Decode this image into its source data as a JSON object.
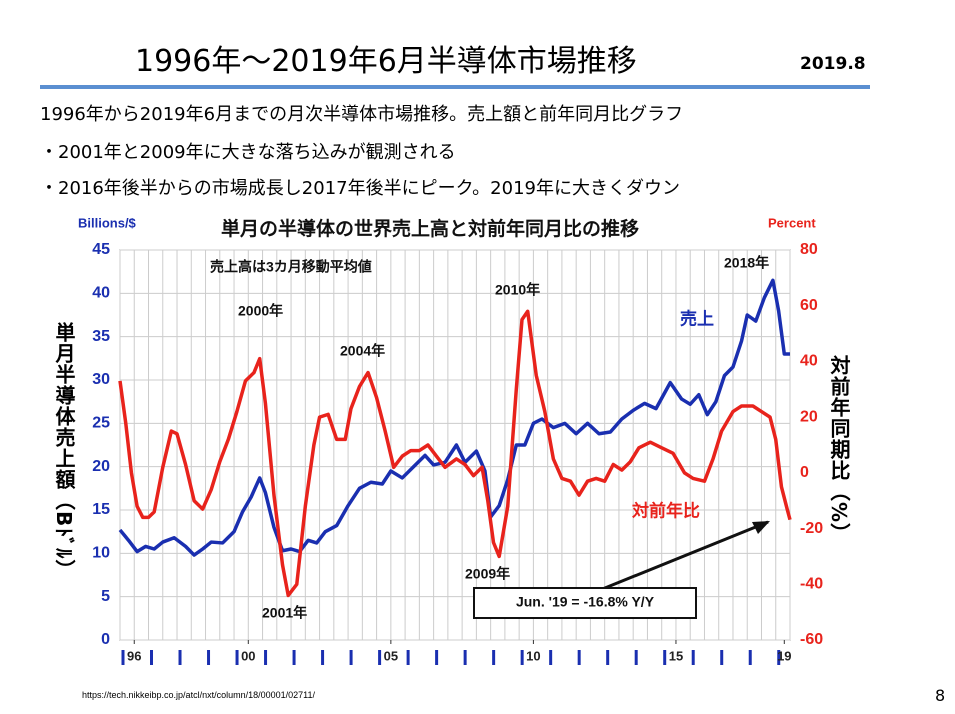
{
  "header": {
    "title": "1996年～2019年6月半導体市場推移",
    "date": "2019.8"
  },
  "bullets": [
    "1996年から2019年6月までの月次半導体市場推移。売上額と前年同月比グラフ",
    "・2001年と2009年に大きな落ち込みが観測される",
    "・2016年後半からの市場成長し2017年後半にピーク。2019年に大きくダウン"
  ],
  "chart_data": {
    "type": "line",
    "title": "単月の半導体の世界売上高と対前年同月比の推移",
    "y_unit": "Billions/$",
    "y2_unit": "Percent",
    "ylabel": "単月半導体売上額（Bﾄﾞﾙ）",
    "y2label": "対前年同期比（%）",
    "xlim": [
      1996,
      2019.5
    ],
    "xticks": [
      {
        "value": 1996.5,
        "label": "96"
      },
      {
        "value": 2000.5,
        "label": "00"
      },
      {
        "value": 2005.5,
        "label": "05"
      },
      {
        "value": 2010.5,
        "label": "10"
      },
      {
        "value": 2015.5,
        "label": "15"
      },
      {
        "value": 2019.3,
        "label": "19"
      }
    ],
    "ylim": [
      0,
      45
    ],
    "yticks": [
      0,
      5,
      10,
      15,
      20,
      25,
      30,
      35,
      40,
      45
    ],
    "y2lim": [
      -60,
      80
    ],
    "y2ticks": [
      -60,
      -40,
      -20,
      0,
      20,
      40,
      60,
      80
    ],
    "grid": true,
    "series": [
      {
        "name": "売上",
        "color": "#1a2fb0",
        "axis": "y",
        "x": [
          1996.0,
          1996.3,
          1996.6,
          1996.9,
          1997.2,
          1997.5,
          1997.9,
          1998.3,
          1998.6,
          1998.9,
          1999.2,
          1999.6,
          2000.0,
          2000.3,
          2000.6,
          2000.9,
          2001.1,
          2001.4,
          2001.7,
          2002.0,
          2002.3,
          2002.6,
          2002.9,
          2003.2,
          2003.6,
          2004.0,
          2004.4,
          2004.8,
          2005.2,
          2005.5,
          2005.9,
          2006.3,
          2006.7,
          2007.0,
          2007.4,
          2007.8,
          2008.1,
          2008.5,
          2008.8,
          2009.0,
          2009.3,
          2009.6,
          2009.9,
          2010.2,
          2010.5,
          2010.8,
          2011.2,
          2011.6,
          2012.0,
          2012.4,
          2012.8,
          2013.2,
          2013.6,
          2014.0,
          2014.4,
          2014.8,
          2015.3,
          2015.7,
          2016.0,
          2016.3,
          2016.6,
          2016.9,
          2017.2,
          2017.5,
          2017.8,
          2018.0,
          2018.3,
          2018.6,
          2018.9,
          2019.1,
          2019.3,
          2019.5
        ],
        "values": [
          12.7,
          11.5,
          10.2,
          10.8,
          10.5,
          11.3,
          11.8,
          10.8,
          9.8,
          10.5,
          11.3,
          11.2,
          12.5,
          14.8,
          16.5,
          18.7,
          17,
          13,
          10.3,
          10.5,
          10.2,
          11.5,
          11.2,
          12.5,
          13.2,
          15.5,
          17.5,
          18.2,
          18,
          19.5,
          18.7,
          20,
          21.3,
          20.2,
          20.5,
          22.5,
          20.5,
          21.8,
          19.5,
          14.2,
          15.5,
          18.5,
          22.5,
          22.5,
          25,
          25.5,
          24.5,
          25,
          23.8,
          25,
          23.8,
          24,
          25.5,
          26.5,
          27.3,
          26.7,
          29.7,
          27.8,
          27.2,
          28.3,
          26,
          27.5,
          30.5,
          31.5,
          34.5,
          37.5,
          36.8,
          39.5,
          41.5,
          38,
          33,
          33
        ]
      },
      {
        "name": "対前年比",
        "color": "#e8231c",
        "axis": "y2",
        "x": [
          1996.0,
          1996.2,
          1996.4,
          1996.6,
          1996.8,
          1997.0,
          1997.2,
          1997.5,
          1997.8,
          1998.0,
          1998.3,
          1998.6,
          1998.9,
          1999.2,
          1999.5,
          1999.8,
          2000.1,
          2000.4,
          2000.7,
          2000.9,
          2001.1,
          2001.4,
          2001.7,
          2001.9,
          2002.2,
          2002.5,
          2002.8,
          2003.0,
          2003.3,
          2003.6,
          2003.9,
          2004.1,
          2004.4,
          2004.7,
          2005.0,
          2005.3,
          2005.6,
          2005.9,
          2006.2,
          2006.5,
          2006.8,
          2007.1,
          2007.4,
          2007.8,
          2008.1,
          2008.4,
          2008.7,
          2008.9,
          2009.1,
          2009.3,
          2009.6,
          2009.9,
          2010.1,
          2010.3,
          2010.6,
          2010.9,
          2011.2,
          2011.5,
          2011.8,
          2012.1,
          2012.4,
          2012.7,
          2013.0,
          2013.3,
          2013.6,
          2013.9,
          2014.2,
          2014.6,
          2015.0,
          2015.4,
          2015.8,
          2016.1,
          2016.5,
          2016.8,
          2017.1,
          2017.5,
          2017.8,
          2018.2,
          2018.5,
          2018.8,
          2019.0,
          2019.2,
          2019.4,
          2019.5
        ],
        "values": [
          33,
          18,
          0,
          -12,
          -16,
          -16,
          -14,
          2,
          15,
          14,
          3,
          -10,
          -13,
          -6,
          4,
          12,
          22,
          33,
          36,
          41,
          25,
          -8,
          -33,
          -44,
          -40,
          -12,
          10,
          20,
          21,
          12,
          12,
          23,
          31,
          36,
          27,
          15,
          2,
          6,
          8,
          8,
          10,
          6,
          2,
          5,
          3,
          -1,
          2,
          -10,
          -25,
          -30,
          -12,
          30,
          55,
          58,
          35,
          22,
          5,
          -2,
          -3,
          -8,
          -3,
          -2,
          -3,
          3,
          1,
          4,
          9,
          11,
          9,
          7,
          0,
          -2,
          -3,
          5,
          15,
          22,
          24,
          24,
          22,
          20,
          12,
          -5,
          -13,
          -16.8
        ]
      }
    ],
    "annotations": [
      "売上高は3カ月移動平均値",
      "2000年",
      "2001年",
      "2004年",
      "2009年",
      "2010年",
      "2018年",
      "Jun. '19 = -16.8% Y/Y"
    ]
  },
  "footer": {
    "source": "https://tech.nikkeibp.co.jp/atcl/nxt/column/18/00001/02711/",
    "page": "8"
  }
}
